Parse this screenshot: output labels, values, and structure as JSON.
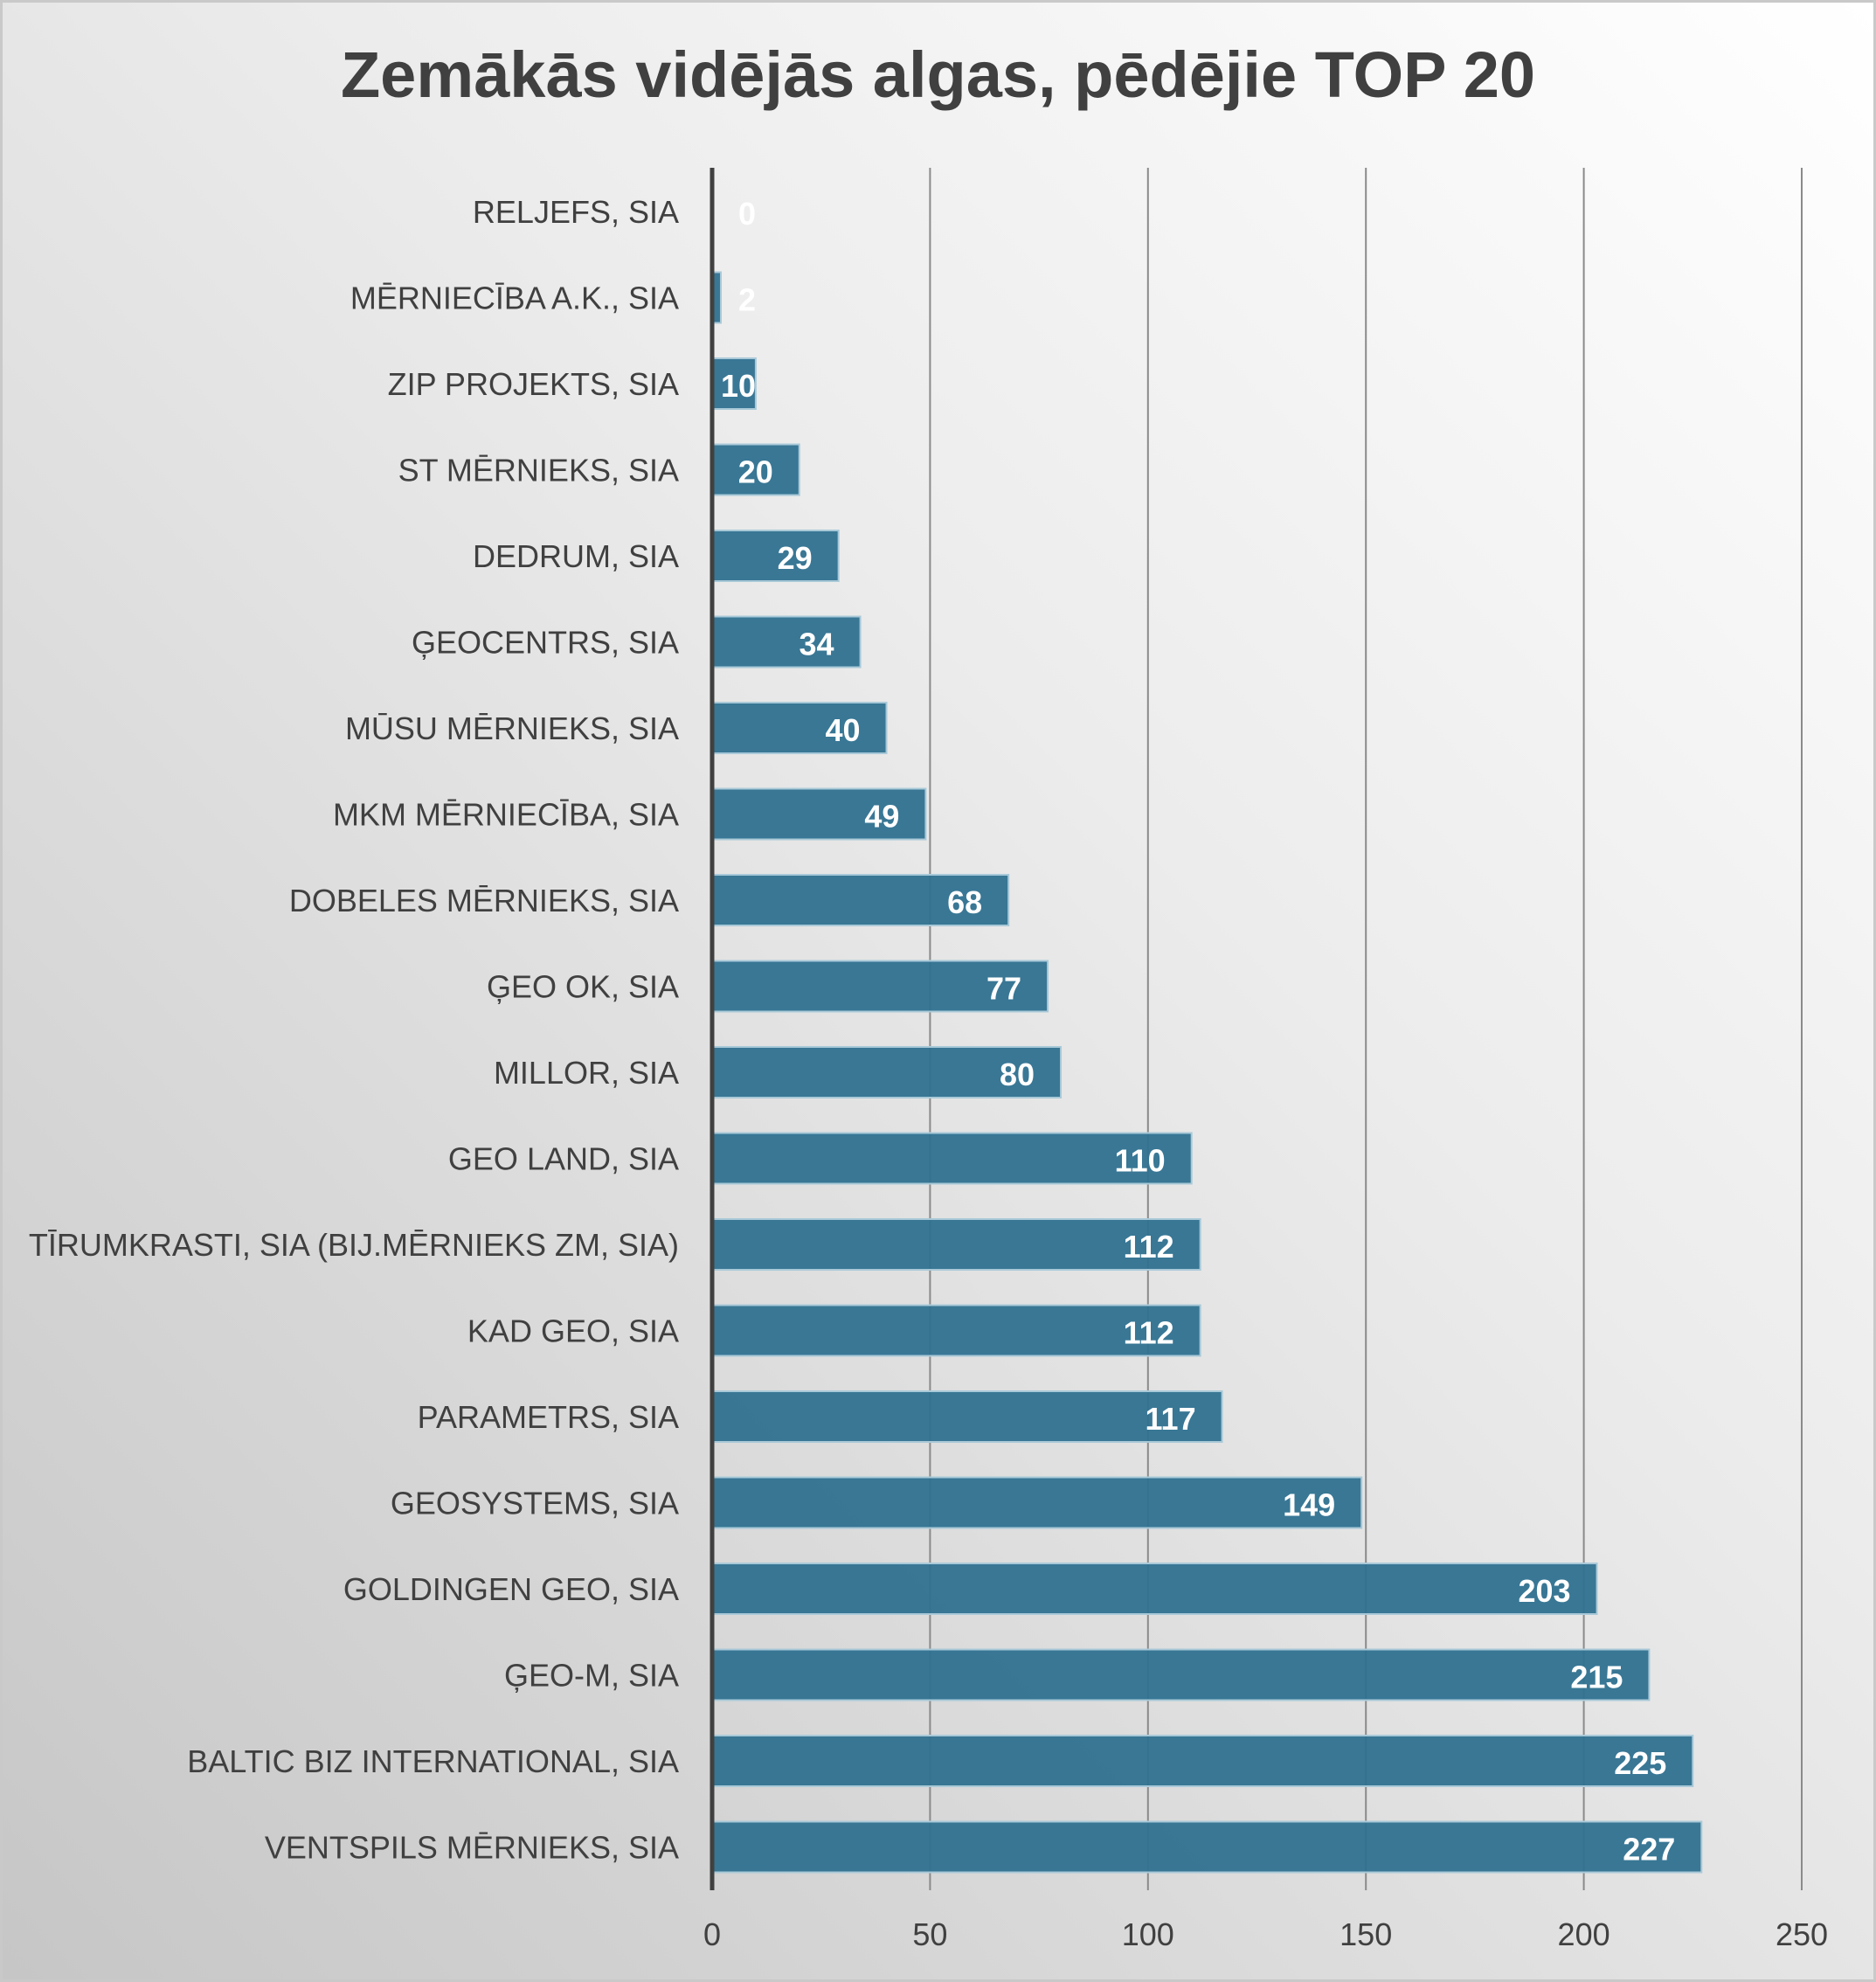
{
  "chart_data": {
    "type": "bar",
    "orientation": "horizontal",
    "title": "Zemākās vidējās algas, pēdējie TOP 20",
    "xlabel": "",
    "ylabel": "",
    "xlim": [
      0,
      250
    ],
    "xticks": [
      "0",
      "50",
      "100",
      "150",
      "200",
      "250"
    ],
    "grid": true,
    "legend": "none",
    "bar_color": "#2f7190",
    "categories": [
      "RELJEFS, SIA",
      "MĒRNIECĪBA A.K., SIA",
      "ZIP PROJEKTS, SIA",
      "ST MĒRNIEKS, SIA",
      "DEDRUM, SIA",
      "ĢEOCENTRS, SIA",
      "MŪSU MĒRNIEKS, SIA",
      "MKM MĒRNIECĪBA, SIA",
      "DOBELES MĒRNIEKS, SIA",
      "ĢEO OK, SIA",
      "MILLOR, SIA",
      "GEO LAND, SIA",
      "TĪRUMKRASTI, SIA (BIJ.MĒRNIEKS ZM, SIA)",
      "KAD GEO, SIA",
      "PARAMETRS, SIA",
      "GEOSYSTEMS, SIA",
      "GOLDINGEN GEO, SIA",
      "ĢEO-M, SIA",
      "BALTIC BIZ INTERNATIONAL, SIA",
      "VENTSPILS MĒRNIEKS, SIA"
    ],
    "values": [
      0,
      2,
      10,
      20,
      29,
      34,
      40,
      49,
      68,
      77,
      80,
      110,
      112,
      112,
      117,
      149,
      203,
      215,
      225,
      227
    ]
  }
}
